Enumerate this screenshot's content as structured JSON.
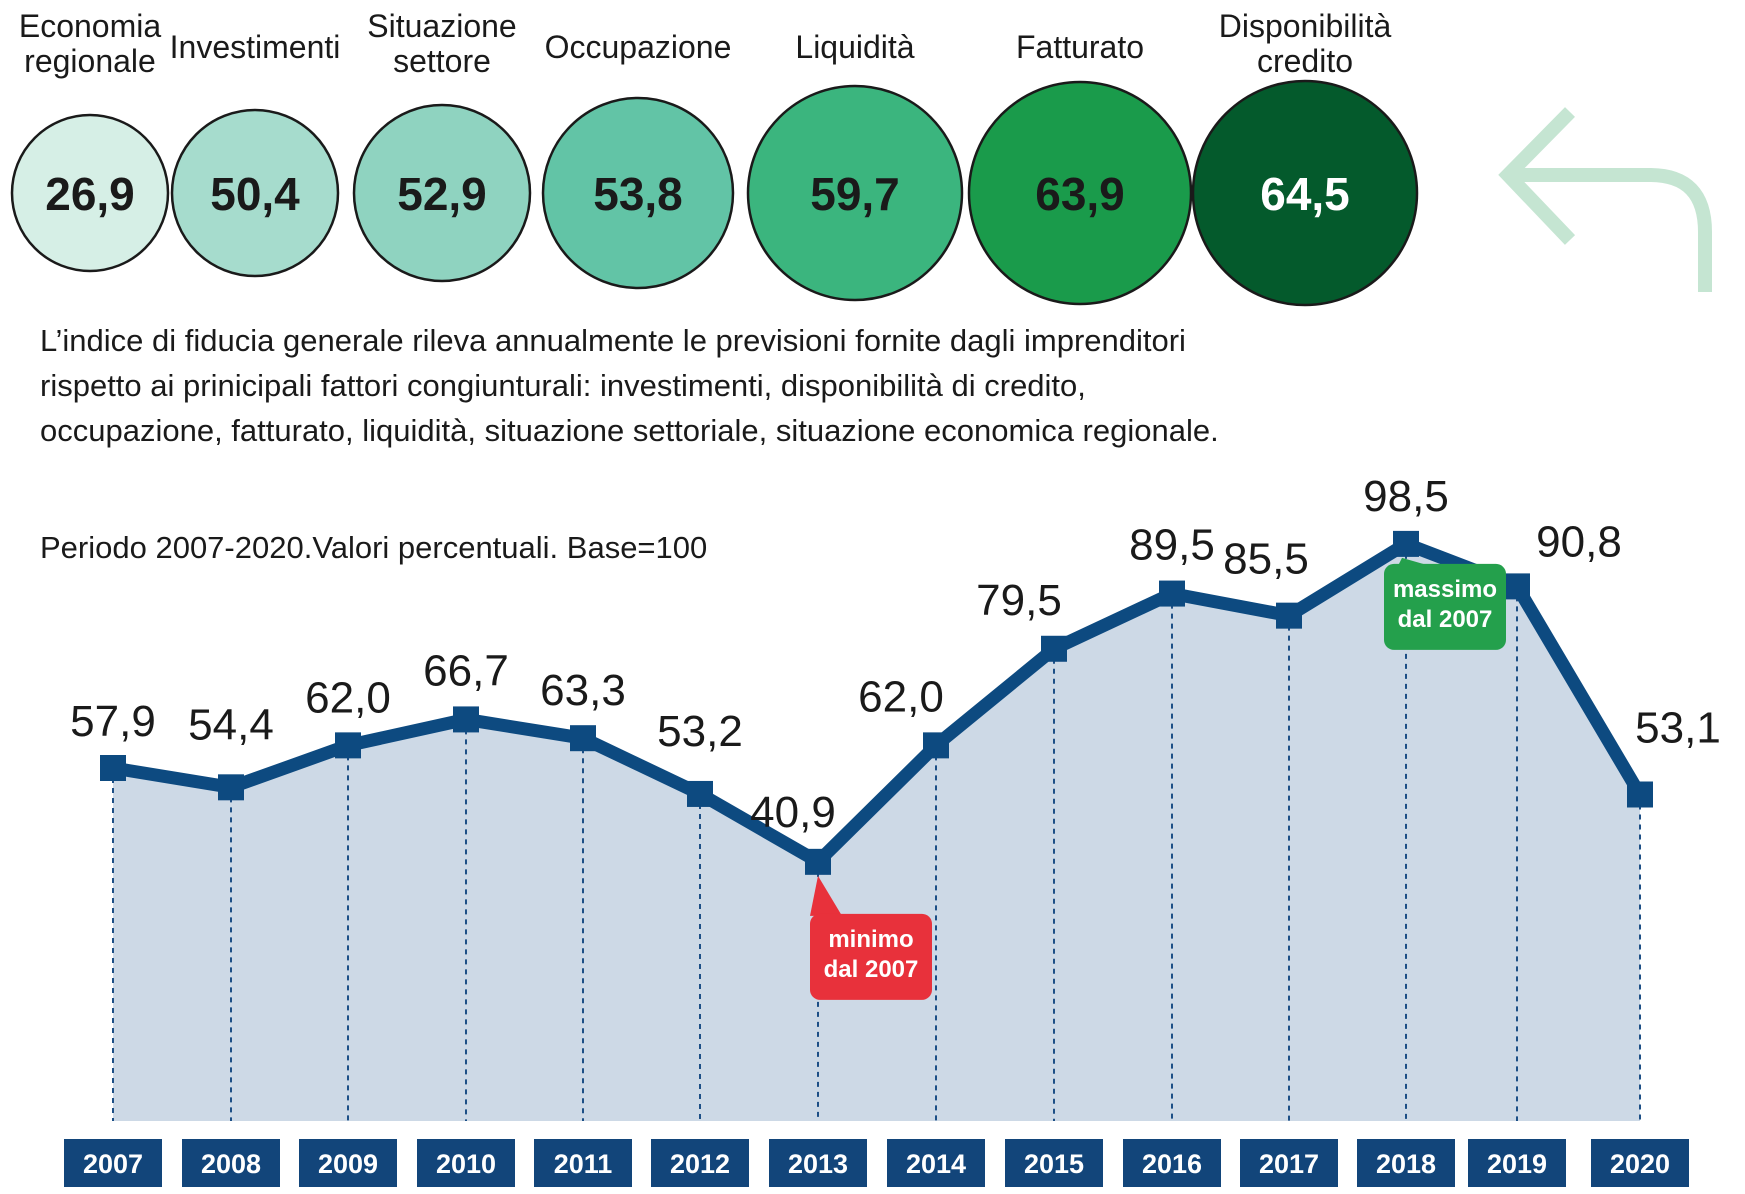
{
  "indicators": {
    "items": [
      {
        "label_lines": [
          "Economia",
          "regionale"
        ],
        "value": "26,9",
        "num": 26.9,
        "fill": "#d6efe6",
        "text_color": "#1a1a1a"
      },
      {
        "label_lines": [
          "Investimenti"
        ],
        "value": "50,4",
        "num": 50.4,
        "fill": "#a6dccd",
        "text_color": "#1a1a1a"
      },
      {
        "label_lines": [
          "Situazione",
          "settore"
        ],
        "value": "52,9",
        "num": 52.9,
        "fill": "#8fd3c0",
        "text_color": "#1a1a1a"
      },
      {
        "label_lines": [
          "Occupazione"
        ],
        "value": "53,8",
        "num": 53.8,
        "fill": "#62c4a6",
        "text_color": "#1a1a1a"
      },
      {
        "label_lines": [
          "Liquidità"
        ],
        "value": "59,7",
        "num": 59.7,
        "fill": "#3bb57e",
        "text_color": "#1a1a1a"
      },
      {
        "label_lines": [
          "Fatturato"
        ],
        "value": "63,9",
        "num": 63.9,
        "fill": "#1a9b4b",
        "text_color": "#1a1a1a"
      },
      {
        "label_lines": [
          "Disponibilità",
          "credito"
        ],
        "value": "64,5",
        "num": 64.5,
        "fill": "#045a2c",
        "text_color": "#ffffff"
      }
    ],
    "arrow_color": "#c5e5d2"
  },
  "description": {
    "lines": [
      "L’indice di fiducia  generale rileva annualmente le previsioni fornite dagli imprenditori",
      "rispetto ai prinicipali fattori congiunturali: investimenti, disponibilità di credito,",
      "occupazione, fatturato, liquidità, situazione settoriale, situazione economica regionale."
    ],
    "period_note": "Periodo 2007-2020.Valori percentuali. Base=100"
  },
  "chart_data": {
    "type": "line",
    "x": [
      "2007",
      "2008",
      "2009",
      "2010",
      "2011",
      "2012",
      "2013",
      "2014",
      "2015",
      "2016",
      "2017",
      "2018",
      "2019",
      "2020"
    ],
    "values": [
      57.9,
      54.4,
      62.0,
      66.7,
      63.3,
      53.2,
      40.9,
      62.0,
      79.5,
      89.5,
      85.5,
      98.5,
      90.8,
      53.1
    ],
    "value_labels": [
      "57,9",
      "54,4",
      "62,0",
      "66,7",
      "63,3",
      "53,2",
      "40,9",
      "62,0",
      "79,5",
      "89,5",
      "85,5",
      "98,5",
      "90,8",
      "53,1"
    ],
    "title": "",
    "xlabel": "",
    "ylabel": "",
    "grid": false,
    "line_color": "#0d4a80",
    "area_color": "#cdd9e6",
    "year_box_color": "#12457a",
    "annotations": [
      {
        "index": 6,
        "lines": [
          "minimo",
          "dal 2007"
        ],
        "color": "#e8313b"
      },
      {
        "index": 11,
        "lines": [
          "massimo",
          "dal 2007"
        ],
        "color": "#24a04c"
      }
    ]
  }
}
